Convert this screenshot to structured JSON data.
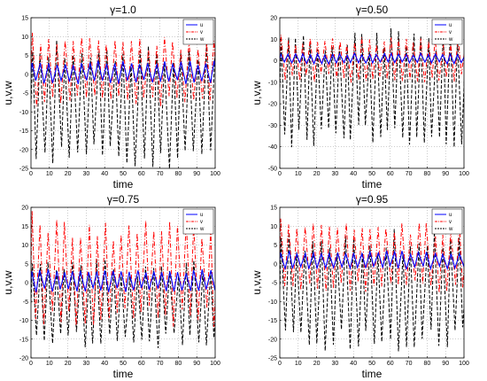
{
  "chart_data": [
    {
      "type": "line",
      "title": "γ=1.0",
      "xlabel": "time",
      "ylabel": "u,v,w",
      "xlim": [
        0,
        100
      ],
      "ylim": [
        -25,
        15
      ],
      "xticks": [
        0,
        10,
        20,
        30,
        40,
        50,
        60,
        70,
        80,
        90,
        100
      ],
      "yticks": [
        -25,
        -20,
        -15,
        -10,
        -5,
        0,
        5,
        10,
        15
      ],
      "grid": true,
      "legend_position": "top-right",
      "series": [
        {
          "name": "u",
          "color": "#0000ff",
          "dash": "solid",
          "period": 4.5,
          "peak": 3,
          "trough": -2,
          "first_peak": 3
        },
        {
          "name": "v",
          "color": "#ff0000",
          "dash": "dashdot",
          "period": 4.5,
          "peak": 8,
          "trough": -7,
          "first_peak": 11
        },
        {
          "name": "w",
          "color": "#000000",
          "dash": "dashed",
          "period": 4.5,
          "peak": 6,
          "trough": -22,
          "first_peak": 6
        }
      ]
    },
    {
      "type": "line",
      "title": "γ=0.50",
      "xlabel": "time",
      "ylabel": "u,v,w",
      "xlim": [
        0,
        100
      ],
      "ylim": [
        -50,
        20
      ],
      "xticks": [
        0,
        10,
        20,
        30,
        40,
        50,
        60,
        70,
        80,
        90,
        100
      ],
      "yticks": [
        -50,
        -40,
        -30,
        -20,
        -10,
        0,
        10,
        20
      ],
      "grid": true,
      "legend_position": "top-right",
      "series": [
        {
          "name": "u",
          "color": "#0000ff",
          "dash": "solid",
          "period": 4,
          "peak": 3,
          "trough": -1,
          "first_peak": 3
        },
        {
          "name": "v",
          "color": "#ff0000",
          "dash": "dashdot",
          "period": 4,
          "peak": 9,
          "trough": -8,
          "first_peak": 12
        },
        {
          "name": "w",
          "color": "#000000",
          "dash": "dashed",
          "period": 4,
          "peak": 10,
          "trough": -35,
          "first_peak": 8
        }
      ]
    },
    {
      "type": "line",
      "title": "γ=0.75",
      "xlabel": "time",
      "ylabel": "u,v,w",
      "xlim": [
        0,
        100
      ],
      "ylim": [
        -20,
        20
      ],
      "xticks": [
        0,
        10,
        20,
        30,
        40,
        50,
        60,
        70,
        80,
        90,
        100
      ],
      "yticks": [
        -20,
        -15,
        -10,
        -5,
        0,
        5,
        10,
        15,
        20
      ],
      "grid": true,
      "legend_position": "top-right",
      "series": [
        {
          "name": "u",
          "color": "#0000ff",
          "dash": "solid",
          "period": 4.4,
          "peak": 3,
          "trough": -2,
          "first_peak": 3
        },
        {
          "name": "v",
          "color": "#ff0000",
          "dash": "dashdot",
          "period": 4.4,
          "peak": 14,
          "trough": -9,
          "first_peak": 19
        },
        {
          "name": "w",
          "color": "#000000",
          "dash": "dashed",
          "period": 4.4,
          "peak": 4,
          "trough": -15,
          "first_peak": 5
        }
      ]
    },
    {
      "type": "line",
      "title": "γ=0.95",
      "xlabel": "time",
      "ylabel": "u,v,w",
      "xlim": [
        0,
        100
      ],
      "ylim": [
        -25,
        15
      ],
      "xticks": [
        0,
        10,
        20,
        30,
        40,
        50,
        60,
        70,
        80,
        90,
        100
      ],
      "yticks": [
        -25,
        -20,
        -15,
        -10,
        -5,
        0,
        5,
        10,
        15
      ],
      "grid": true,
      "legend_position": "top-right",
      "series": [
        {
          "name": "u",
          "color": "#0000ff",
          "dash": "solid",
          "period": 4.4,
          "peak": 3,
          "trough": -1,
          "first_peak": 3
        },
        {
          "name": "v",
          "color": "#ff0000",
          "dash": "dashdot",
          "period": 4.4,
          "peak": 9,
          "trough": -6,
          "first_peak": 12
        },
        {
          "name": "w",
          "color": "#000000",
          "dash": "dashed",
          "period": 4.4,
          "peak": 6,
          "trough": -20,
          "first_peak": 7
        }
      ]
    }
  ]
}
